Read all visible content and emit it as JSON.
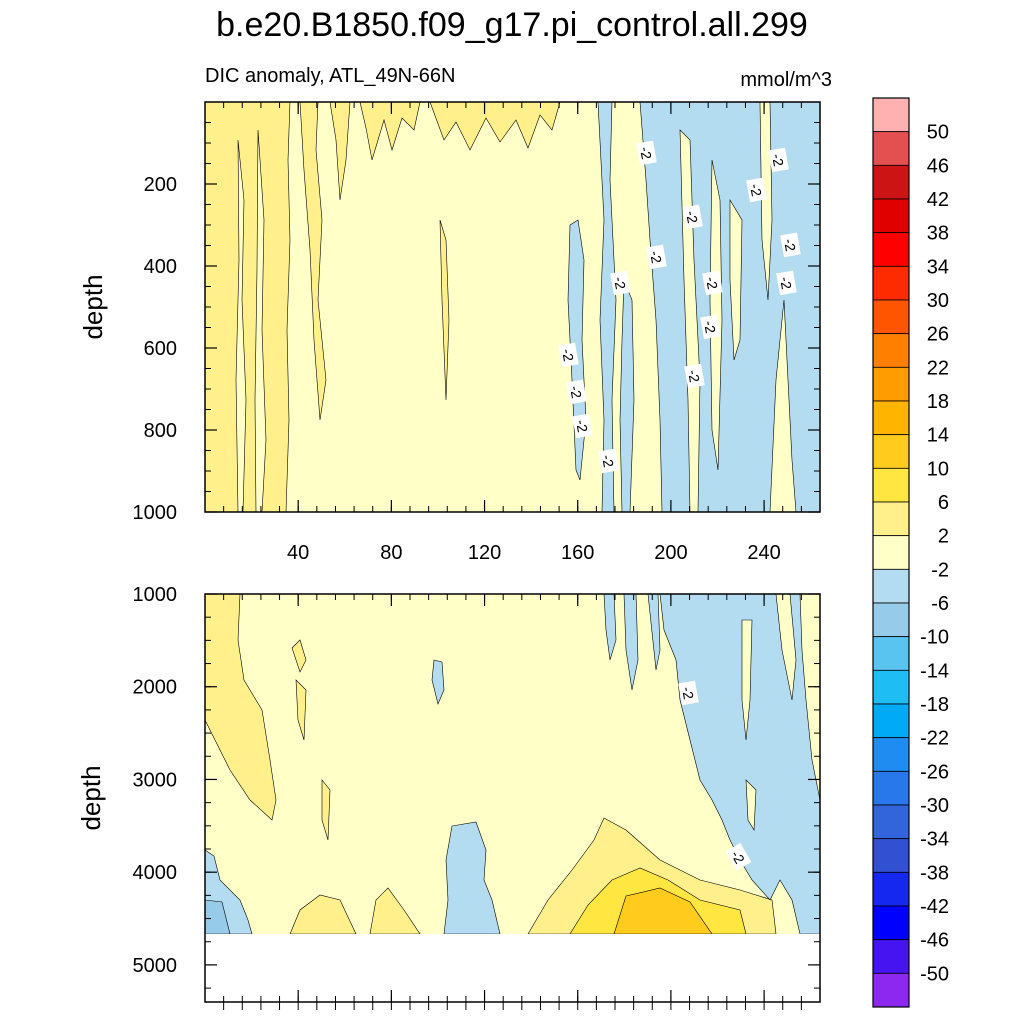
{
  "chart_data": {
    "type": "contour",
    "title": "b.e20.B1850.f09_g17.pi_control.all.299",
    "subtitle_left": "DIC anomaly, ATL_49N-66N",
    "units": "mmol/m^3",
    "panels": [
      {
        "name": "upper",
        "xlim": [
          0,
          264
        ],
        "ylim": [
          0,
          1000
        ],
        "ylabel": "depth",
        "x_ticks": [
          40,
          80,
          120,
          160,
          200,
          240
        ],
        "y_ticks": [
          200,
          400,
          600,
          800,
          1000
        ],
        "contour_labels": [
          "-2",
          "-2",
          "-2",
          "-2",
          "-2",
          "-2",
          "-2",
          "-2",
          "-2",
          "-2",
          "-2",
          "-2",
          "-2",
          "-2",
          "-2"
        ]
      },
      {
        "name": "lower",
        "xlim": [
          0,
          264
        ],
        "ylim": [
          1000,
          5400
        ],
        "ylabel": "depth",
        "y_ticks": [
          1000,
          2000,
          3000,
          4000,
          5000
        ],
        "contour_labels": [
          "-2",
          "-2"
        ]
      }
    ],
    "colorbar": {
      "levels": [
        "50",
        "46",
        "42",
        "38",
        "34",
        "30",
        "26",
        "22",
        "18",
        "14",
        "10",
        "6",
        "2",
        "-2",
        "-6",
        "-10",
        "-14",
        "-18",
        "-22",
        "-26",
        "-30",
        "-34",
        "-38",
        "-42",
        "-46",
        "-50"
      ],
      "colors": [
        "#ffb0b0",
        "#e45050",
        "#cc1414",
        "#e00000",
        "#ff0000",
        "#ff2b00",
        "#ff5500",
        "#ff7f00",
        "#ff9c00",
        "#ffb400",
        "#ffcc1e",
        "#ffe640",
        "#fff08c",
        "#ffffc8",
        "#b4dcf0",
        "#96ccea",
        "#5ac4f0",
        "#1ebef5",
        "#00aaf5",
        "#1e8cf0",
        "#2878eb",
        "#3264dc",
        "#3250d2",
        "#1428f0",
        "#0000ff",
        "#4614f0",
        "#8c28f0"
      ]
    }
  }
}
